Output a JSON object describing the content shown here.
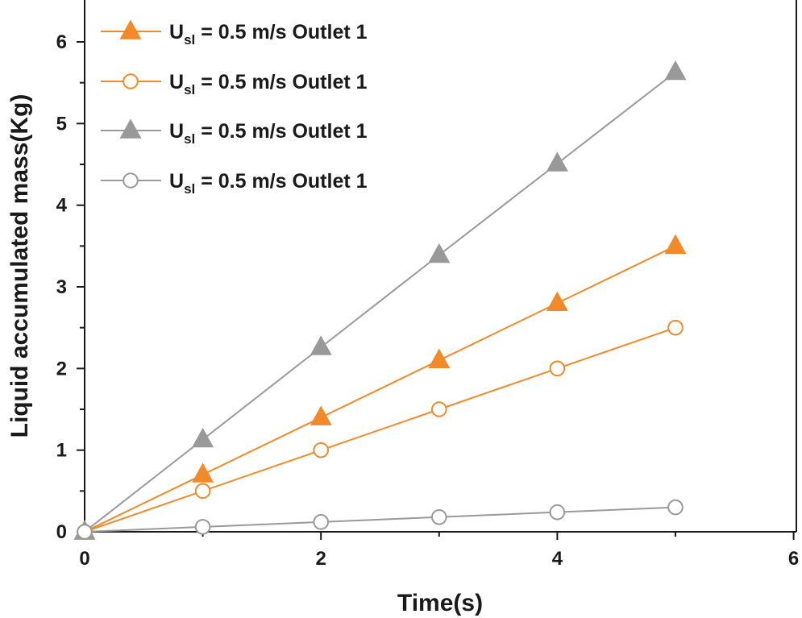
{
  "chart_data": {
    "type": "line",
    "xlabel": "Time(s)",
    "ylabel": "Liquid accumulated mass(Kg)",
    "xlim": [
      0,
      6
    ],
    "ylim": [
      0,
      6.5
    ],
    "x_ticks": [
      "0",
      "2",
      "4",
      "6"
    ],
    "y_ticks": [
      "0",
      "1",
      "2",
      "3",
      "4",
      "5",
      "6"
    ],
    "x": [
      0,
      1,
      2,
      3,
      4,
      5
    ],
    "legend_position": "top-left",
    "series": [
      {
        "name_main": "U",
        "name_sub": "sl",
        "name_rest": " = 0.5 m/s Outlet 1",
        "color": "#f08a2b",
        "marker": "triangle-filled",
        "values": [
          0,
          0.7,
          1.4,
          2.1,
          2.8,
          3.5
        ]
      },
      {
        "name_main": "U",
        "name_sub": "sl",
        "name_rest": " = 0.5 m/s Outlet 1",
        "color": "#f08a2b",
        "marker": "circle-open",
        "values": [
          0,
          0.5,
          1.0,
          1.5,
          2.0,
          2.5
        ]
      },
      {
        "name_main": "U",
        "name_sub": "sl",
        "name_rest": " = 0.5 m/s Outlet 1",
        "color": "#999999",
        "marker": "triangle-filled",
        "values": [
          0,
          1.13,
          2.26,
          3.39,
          4.51,
          5.63
        ]
      },
      {
        "name_main": "U",
        "name_sub": "sl",
        "name_rest": " = 0.5 m/s Outlet 1",
        "color": "#999999",
        "marker": "circle-open",
        "values": [
          0,
          0.06,
          0.12,
          0.18,
          0.24,
          0.3
        ]
      }
    ]
  }
}
